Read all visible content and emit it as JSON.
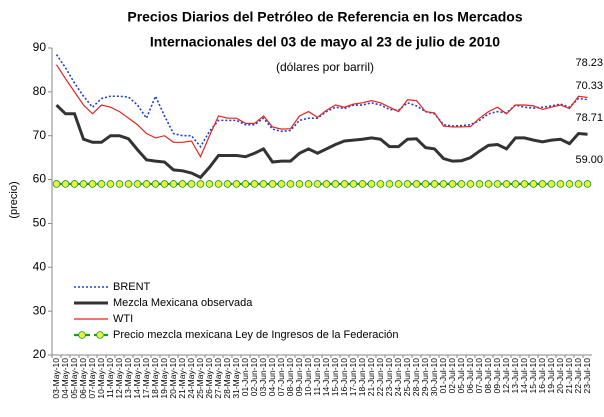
{
  "chart_data": {
    "type": "line",
    "title": [
      "Precios Diarios del Petróleo de Referencia en los Mercados",
      "Internacionales del 03 de mayo al 23 de julio de 2010"
    ],
    "subtitle": "(dólares por barril)",
    "y_label": "(precio)",
    "categories": [
      "03-May-10",
      "04-May-10",
      "05-May-10",
      "06-May-10",
      "07-May-10",
      "10-May-10",
      "11-May-10",
      "12-May-10",
      "13-May-10",
      "14-May-10",
      "17-May-10",
      "18-May-10",
      "19-May-10",
      "20-May-10",
      "21-May-10",
      "24-May-10",
      "25-May-10",
      "26-May-10",
      "27-May-10",
      "28-May-10",
      "31-May-10",
      "01-Jun-10",
      "02-Jun-10",
      "03-Jun-10",
      "04-Jun-10",
      "07-Jun-10",
      "08-Jun-10",
      "09-Jun-10",
      "10-Jun-10",
      "11-Jun-10",
      "14-Jun-10",
      "15-Jun-10",
      "16-Jun-10",
      "17-Jun-10",
      "18-Jun-10",
      "21-Jun-10",
      "22-Jun-10",
      "23-Jun-10",
      "24-Jun-10",
      "25-Jun-10",
      "28-Jun-10",
      "29-Jun-10",
      "30-Jun-10",
      "01-Jul-10",
      "02-Jul-10",
      "05-Jul-10",
      "06-Jul-10",
      "07-Jul-10",
      "08-Jul-10",
      "09-Jul-10",
      "12-Jul-10",
      "13-Jul-10",
      "14-Jul-10",
      "15-Jul-10",
      "16-Jul-10",
      "19-Jul-10",
      "20-Jul-10",
      "21-Jul-10",
      "22-Jul-10",
      "23-Jul-10"
    ],
    "series": [
      {
        "name": "BRENT",
        "color": "#1f3fd0",
        "width": 1.6,
        "dash": "2 2",
        "values": [
          88.5,
          85.5,
          82,
          79,
          76.5,
          78.5,
          79,
          79,
          78.8,
          77,
          74,
          79,
          74.5,
          70.5,
          70,
          70,
          67.5,
          71,
          73.5,
          73.5,
          73.5,
          72.5,
          72.5,
          74,
          71.5,
          71,
          71.2,
          73.5,
          74,
          74,
          75.5,
          76.5,
          76.2,
          77,
          77,
          77.5,
          77,
          76,
          75.8,
          77.5,
          76.8,
          75.5,
          75,
          72.5,
          72.2,
          72.3,
          72.5,
          73.5,
          75,
          75.5,
          75.2,
          77,
          76.5,
          76.3,
          76.5,
          76.8,
          77.2,
          76.5,
          78.5,
          78.23
        ],
        "value_labels": [
          null,
          null,
          null,
          null,
          null,
          null,
          null,
          null,
          null,
          null,
          null,
          null,
          null,
          null,
          null,
          null,
          null,
          null,
          null,
          null,
          null,
          null,
          null,
          null,
          null,
          null,
          null,
          null,
          null,
          null,
          null,
          null,
          null,
          null,
          null,
          null,
          null,
          null,
          null,
          null,
          null,
          null,
          null,
          null,
          null,
          null,
          null,
          null,
          null,
          null,
          null,
          null,
          null,
          null,
          null,
          null,
          null,
          null,
          null,
          "78.23"
        ]
      },
      {
        "name": "Mezcla Mexicana observada",
        "color": "#333333",
        "width": 3,
        "values": [
          77,
          75,
          75,
          69.2,
          68.5,
          68.5,
          70,
          70,
          69.3,
          66.8,
          64.5,
          64.2,
          64,
          62.2,
          62,
          61.5,
          60.5,
          62.8,
          65.5,
          65.5,
          65.5,
          65.2,
          66,
          67,
          64,
          64.2,
          64.2,
          66,
          67,
          66,
          67,
          68,
          68.8,
          69,
          69.2,
          69.5,
          69.2,
          67.5,
          67.5,
          69.2,
          69.3,
          67.3,
          67,
          64.8,
          64.2,
          64.3,
          65,
          66.5,
          67.8,
          68,
          67,
          69.5,
          69.5,
          69,
          68.6,
          69,
          69.2,
          68.2,
          70.5,
          70.33
        ],
        "value_labels": [
          null,
          null,
          null,
          null,
          null,
          null,
          null,
          null,
          null,
          null,
          null,
          null,
          null,
          null,
          null,
          null,
          null,
          null,
          null,
          null,
          null,
          null,
          null,
          null,
          null,
          null,
          null,
          null,
          null,
          null,
          null,
          null,
          null,
          null,
          null,
          null,
          null,
          null,
          null,
          null,
          null,
          null,
          null,
          null,
          null,
          null,
          null,
          null,
          null,
          null,
          null,
          null,
          null,
          null,
          null,
          null,
          null,
          null,
          null,
          "70.33"
        ]
      },
      {
        "name": "WTI",
        "color": "#e8231d",
        "width": 1.2,
        "values": [
          86.2,
          83,
          80,
          77,
          75,
          77,
          76.5,
          75.5,
          74,
          72.5,
          70.5,
          69.5,
          70,
          68.5,
          68.5,
          68.8,
          65.2,
          70,
          74.5,
          74,
          74,
          72.8,
          72.8,
          74.5,
          72,
          71.5,
          71.6,
          74.5,
          75.5,
          74.2,
          75.8,
          77,
          76.5,
          77.2,
          77.5,
          78,
          77.5,
          76.5,
          75.5,
          78.2,
          78,
          75.5,
          75.2,
          72.2,
          72,
          72,
          72.1,
          74,
          75.5,
          76.5,
          75,
          77,
          77,
          76.8,
          76,
          76.5,
          77,
          76.2,
          79,
          78.71
        ],
        "value_labels": [
          null,
          null,
          null,
          null,
          null,
          null,
          null,
          null,
          null,
          null,
          null,
          null,
          null,
          null,
          null,
          null,
          null,
          null,
          null,
          null,
          null,
          null,
          null,
          null,
          null,
          null,
          null,
          null,
          null,
          null,
          null,
          null,
          null,
          null,
          null,
          null,
          null,
          null,
          null,
          null,
          null,
          null,
          null,
          null,
          null,
          null,
          null,
          null,
          null,
          null,
          null,
          null,
          null,
          null,
          null,
          null,
          null,
          null,
          null,
          "78.71"
        ]
      },
      {
        "name": "Precio mezcla mexicana Ley de Ingresos de la Federación",
        "color": "#1a9a2a",
        "width": 2.2,
        "dash": "6 4",
        "marker": "circle",
        "marker_color": "#e6f23c",
        "values": [
          59,
          59,
          59,
          59,
          59,
          59,
          59,
          59,
          59,
          59,
          59,
          59,
          59,
          59,
          59,
          59,
          59,
          59,
          59,
          59,
          59,
          59,
          59,
          59,
          59,
          59,
          59,
          59,
          59,
          59,
          59,
          59,
          59,
          59,
          59,
          59,
          59,
          59,
          59,
          59,
          59,
          59,
          59,
          59,
          59,
          59,
          59,
          59,
          59,
          59,
          59,
          59,
          59,
          59,
          59,
          59,
          59,
          59,
          59,
          59.0
        ],
        "value_labels": [
          null,
          null,
          null,
          null,
          null,
          null,
          null,
          null,
          null,
          null,
          null,
          null,
          null,
          null,
          null,
          null,
          null,
          null,
          null,
          null,
          null,
          null,
          null,
          null,
          null,
          null,
          null,
          null,
          null,
          null,
          null,
          null,
          null,
          null,
          null,
          null,
          null,
          null,
          null,
          null,
          null,
          null,
          null,
          null,
          null,
          null,
          null,
          null,
          null,
          null,
          null,
          null,
          null,
          null,
          null,
          null,
          null,
          null,
          null,
          "59.00"
        ]
      }
    ],
    "ylim": [
      20,
      90
    ],
    "yticks": [
      20,
      30,
      40,
      50,
      60,
      70,
      80,
      90
    ]
  }
}
